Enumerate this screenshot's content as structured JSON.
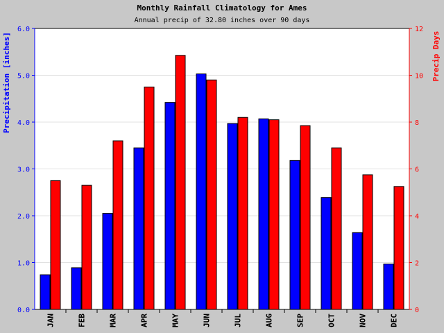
{
  "chart_data": {
    "type": "bar",
    "title": "Monthly Rainfall Climatology for Ames",
    "subtitle": "Annual precip of 32.80 inches over 90 days",
    "categories": [
      "JAN",
      "FEB",
      "MAR",
      "APR",
      "MAY",
      "JUN",
      "JUL",
      "AUG",
      "SEP",
      "OCT",
      "NOV",
      "DEC"
    ],
    "series": [
      {
        "name": "Precipitation [inches]",
        "axis": "left",
        "color": "#0000ff",
        "values": [
          0.74,
          0.89,
          2.05,
          3.45,
          4.42,
          5.03,
          3.97,
          4.07,
          3.18,
          2.39,
          1.64,
          0.97
        ]
      },
      {
        "name": "Precip Days",
        "axis": "right",
        "color": "#ff0000",
        "values": [
          5.5,
          5.3,
          7.2,
          9.5,
          10.85,
          9.8,
          8.2,
          8.1,
          7.85,
          6.9,
          5.75,
          5.25
        ]
      }
    ],
    "ylabel": "Precipitation [inches]",
    "y2label": "Precip Days",
    "ylim": [
      0,
      6
    ],
    "y2lim": [
      0,
      12
    ],
    "yticks": [
      "0.0",
      "1.0",
      "2.0",
      "3.0",
      "4.0",
      "5.0",
      "6.0"
    ],
    "y2ticks": [
      "0",
      "2",
      "4",
      "6",
      "8",
      "10",
      "12"
    ],
    "grid": true,
    "legend": "none",
    "colors": {
      "background": "#c8c8c8",
      "plot": "#ffffff",
      "left_axis": "#0000ff",
      "right_axis": "#ff0000",
      "grid": "#e0e0e0"
    }
  }
}
